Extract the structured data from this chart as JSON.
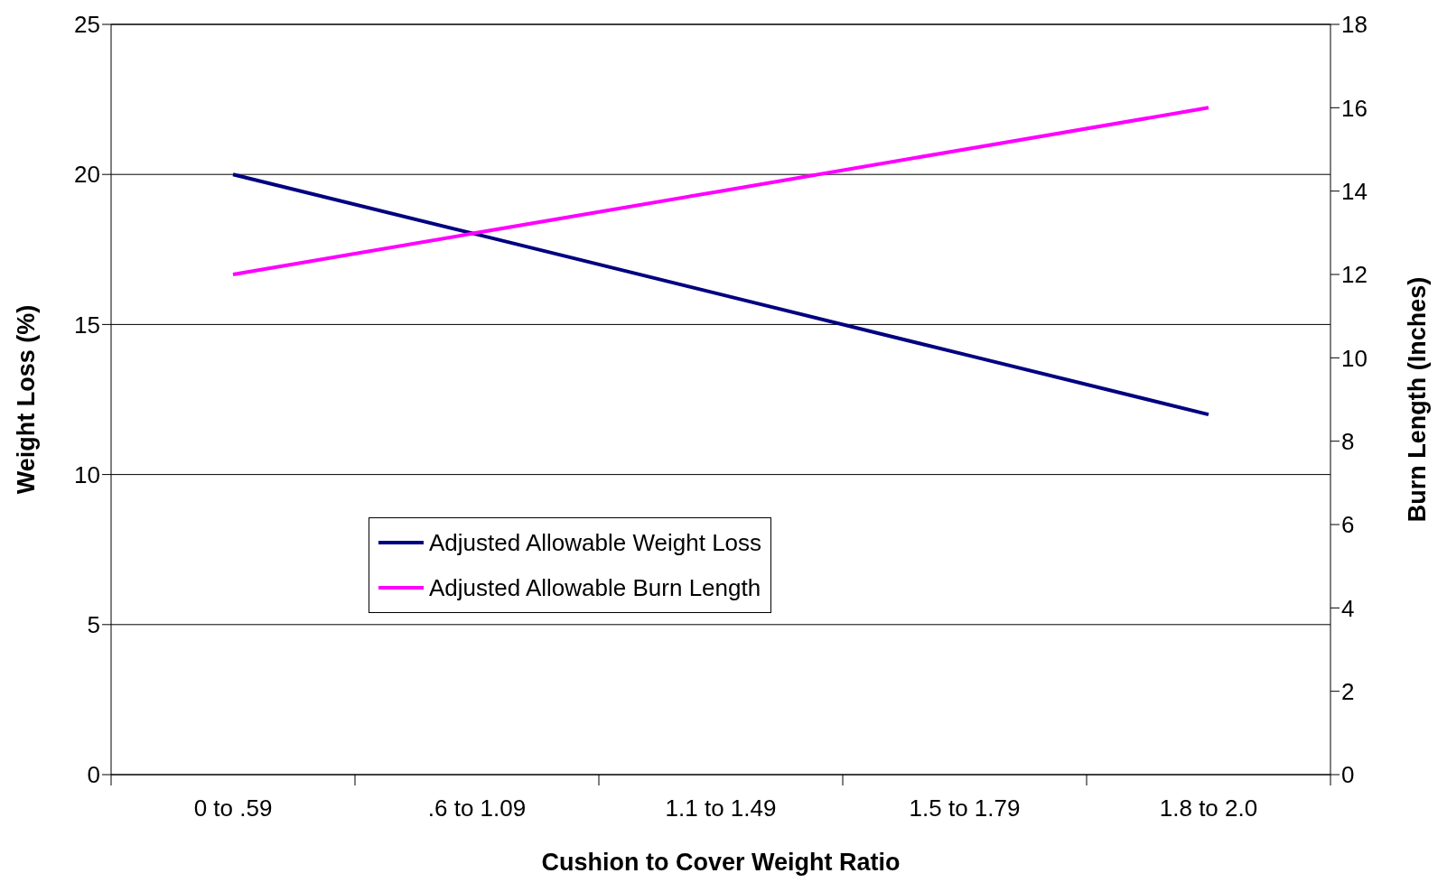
{
  "chart_data": {
    "type": "line",
    "xlabel": "Cushion to Cover Weight Ratio",
    "ylabel": "Weight Loss (%)",
    "y2label": "Burn Length (Inches)",
    "categories": [
      "0 to .59",
      ".6 to 1.09",
      "1.1 to 1.49",
      "1.5 to 1.79",
      "1.8 to 2.0"
    ],
    "series": [
      {
        "name": "Adjusted Allowable Weight Loss",
        "color": "#000080",
        "values": [
          20,
          18,
          16,
          14,
          12
        ]
      },
      {
        "name": "Adjusted Allowable Burn Length",
        "color": "#ff00ff",
        "values": [
          12,
          13,
          14,
          15,
          16
        ],
        "axis": "y2"
      }
    ],
    "ylim": [
      0,
      25
    ],
    "yticks": [
      0,
      5,
      10,
      15,
      20,
      25
    ],
    "y2lim": [
      0,
      18
    ],
    "y2ticks": [
      0,
      2,
      4,
      6,
      8,
      10,
      12,
      14,
      16,
      18
    ],
    "grid": "y",
    "legend": "bottom left",
    "marker": "none",
    "line_style": "solid"
  }
}
